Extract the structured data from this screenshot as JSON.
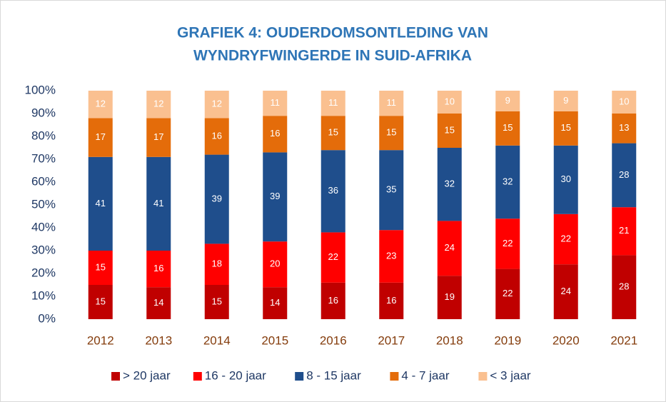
{
  "chart_data": {
    "type": "stacked_bar",
    "title": [
      "GRAFIEK 4: OUDERDOMSONTLEDING VAN",
      "WYNDRYFWINGERDE IN SUID-AFRIKA"
    ],
    "categories": [
      "2012",
      "2013",
      "2014",
      "2015",
      "2016",
      "2017",
      "2018",
      "2019",
      "2020",
      "2021"
    ],
    "series": [
      {
        "name": "> 20 jaar",
        "color": "#c00000",
        "values": [
          15,
          14,
          15,
          14,
          16,
          16,
          19,
          22,
          24,
          28
        ]
      },
      {
        "name": "16 - 20 jaar",
        "color": "#ff0000",
        "values": [
          15,
          16,
          18,
          20,
          22,
          23,
          24,
          22,
          22,
          21
        ]
      },
      {
        "name": "8 - 15 jaar",
        "color": "#1f4e8c",
        "values": [
          41,
          41,
          39,
          39,
          36,
          35,
          32,
          32,
          30,
          28
        ]
      },
      {
        "name": "4 - 7 jaar",
        "color": "#e46c0a",
        "values": [
          17,
          17,
          16,
          16,
          15,
          15,
          15,
          15,
          15,
          13
        ]
      },
      {
        "name": "< 3 jaar",
        "color": "#fac090",
        "values": [
          12,
          12,
          12,
          11,
          11,
          11,
          10,
          9,
          9,
          10
        ]
      }
    ],
    "ylim": [
      0,
      100
    ],
    "yticks": [
      {
        "value": 0,
        "label": "0%"
      },
      {
        "value": 10,
        "label": "10%"
      },
      {
        "value": 20,
        "label": "20%"
      },
      {
        "value": 30,
        "label": "30%"
      },
      {
        "value": 40,
        "label": "40%"
      },
      {
        "value": 50,
        "label": "50%"
      },
      {
        "value": 60,
        "label": "60%"
      },
      {
        "value": 70,
        "label": "70%"
      },
      {
        "value": 80,
        "label": "80%"
      },
      {
        "value": 90,
        "label": "90%"
      },
      {
        "value": 100,
        "label": "100%"
      }
    ],
    "legend": "bottom"
  }
}
